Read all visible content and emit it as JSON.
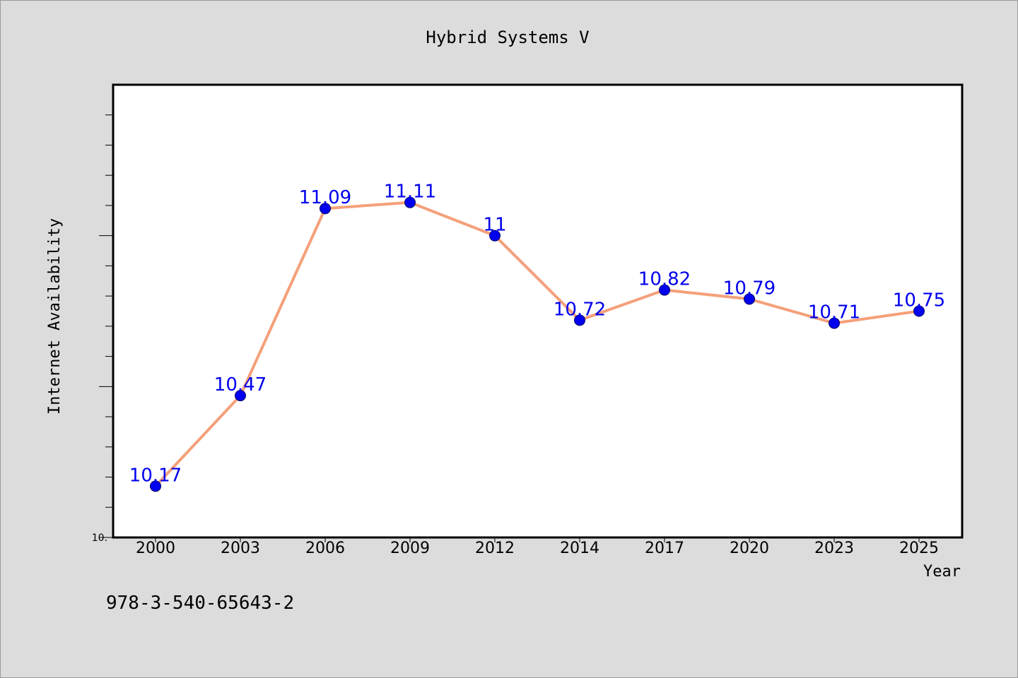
{
  "chart_data": {
    "type": "line",
    "title": "Hybrid Systems V",
    "xlabel": "Year",
    "ylabel": "Internet Availability",
    "categories": [
      "2000",
      "2003",
      "2006",
      "2009",
      "2012",
      "2014",
      "2017",
      "2020",
      "2023",
      "2025"
    ],
    "series": [
      {
        "values": [
          10.17,
          10.47,
          11.09,
          11.11,
          11.0,
          10.72,
          10.82,
          10.79,
          10.71,
          10.75
        ]
      }
    ],
    "data_labels": [
      "10.17",
      "10.47",
      "11.09",
      "11.11",
      "11",
      "10.72",
      "10.82",
      "10.79",
      "10.71",
      "10.75"
    ],
    "ylim": [
      10.0,
      11.5
    ],
    "y_tick_label": "10.",
    "grid": false,
    "line_color": "#f4a07a",
    "marker_color": "#0000ee",
    "label_color": "#0000ee"
  },
  "footer": {
    "isbn": "978-3-540-65643-2"
  }
}
